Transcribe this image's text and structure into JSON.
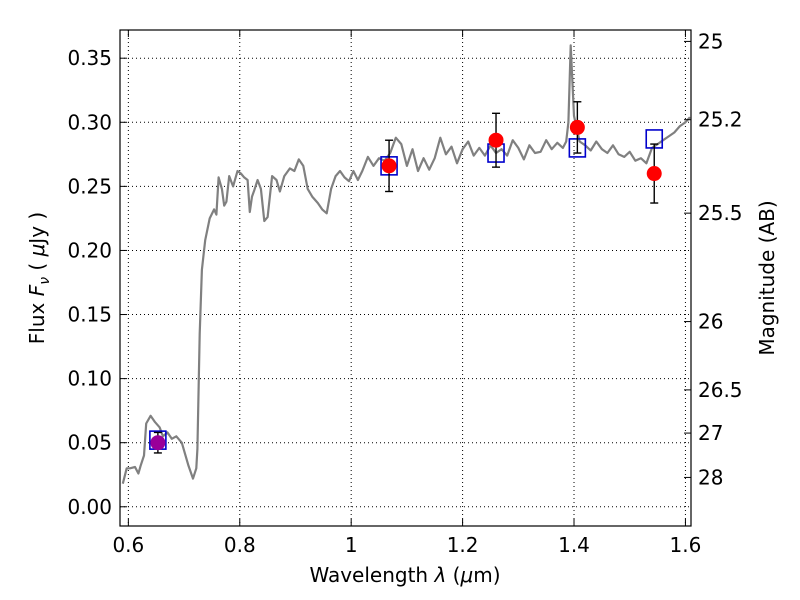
{
  "chart_data": {
    "type": "scatter",
    "xlabel": "Wavelength  λ (μm)",
    "ylabel": "Flux  Fν  ( μJy )",
    "ylabel_right": "Magnitude (AB)",
    "xlim": [
      0.585,
      1.61
    ],
    "ylim": [
      -0.015,
      0.372
    ],
    "grid": true,
    "x_ticks": [
      0.6,
      0.8,
      1.0,
      1.2,
      1.4,
      1.6
    ],
    "x_tick_labels": [
      "0.6",
      "0.8",
      "1",
      "1.2",
      "1.4",
      "1.6"
    ],
    "y_ticks": [
      0.0,
      0.05,
      0.1,
      0.15,
      0.2,
      0.25,
      0.3,
      0.35
    ],
    "y_tick_labels": [
      "0.00",
      "0.05",
      "0.10",
      "0.15",
      "0.20",
      "0.25",
      "0.30",
      "0.35"
    ],
    "right_ticks": [
      {
        "label": "25",
        "flux": 0.3631
      },
      {
        "label": "25.2",
        "flux": 0.302
      },
      {
        "label": "25.5",
        "flux": 0.2291
      },
      {
        "label": "26",
        "flux": 0.1445
      },
      {
        "label": "26.5",
        "flux": 0.0912
      },
      {
        "label": "27",
        "flux": 0.0575
      },
      {
        "label": "28",
        "flux": 0.0229
      }
    ],
    "model_spectrum": {
      "color": "#808080",
      "x": [
        0.59,
        0.597,
        0.603,
        0.612,
        0.618,
        0.622,
        0.628,
        0.632,
        0.64,
        0.648,
        0.656,
        0.662,
        0.67,
        0.678,
        0.686,
        0.696,
        0.708,
        0.716,
        0.722,
        0.724,
        0.728,
        0.732,
        0.738,
        0.746,
        0.754,
        0.758,
        0.762,
        0.768,
        0.772,
        0.776,
        0.781,
        0.788,
        0.796,
        0.802,
        0.808,
        0.814,
        0.818,
        0.822,
        0.826,
        0.832,
        0.838,
        0.844,
        0.85,
        0.858,
        0.866,
        0.872,
        0.88,
        0.89,
        0.898,
        0.906,
        0.914,
        0.922,
        0.93,
        0.94,
        0.948,
        0.956,
        0.964,
        0.972,
        0.98,
        0.988,
        0.996,
        1.004,
        1.012,
        1.02,
        1.03,
        1.04,
        1.05,
        1.06,
        1.07,
        1.08,
        1.09,
        1.1,
        1.11,
        1.12,
        1.13,
        1.14,
        1.15,
        1.16,
        1.17,
        1.18,
        1.19,
        1.2,
        1.21,
        1.22,
        1.23,
        1.24,
        1.25,
        1.26,
        1.27,
        1.28,
        1.29,
        1.3,
        1.31,
        1.32,
        1.33,
        1.34,
        1.35,
        1.36,
        1.37,
        1.38,
        1.386,
        1.39,
        1.394,
        1.4,
        1.41,
        1.42,
        1.43,
        1.44,
        1.45,
        1.46,
        1.47,
        1.48,
        1.49,
        1.5,
        1.51,
        1.52,
        1.53,
        1.54,
        1.55,
        1.56,
        1.57,
        1.58,
        1.59,
        1.6,
        1.608
      ],
      "y": [
        0.018,
        0.03,
        0.03,
        0.031,
        0.026,
        0.032,
        0.04,
        0.065,
        0.071,
        0.066,
        0.062,
        0.055,
        0.058,
        0.053,
        0.055,
        0.05,
        0.032,
        0.022,
        0.03,
        0.045,
        0.135,
        0.185,
        0.208,
        0.225,
        0.232,
        0.228,
        0.257,
        0.248,
        0.235,
        0.238,
        0.258,
        0.25,
        0.262,
        0.26,
        0.257,
        0.255,
        0.23,
        0.242,
        0.247,
        0.255,
        0.248,
        0.223,
        0.226,
        0.258,
        0.255,
        0.246,
        0.258,
        0.264,
        0.262,
        0.271,
        0.266,
        0.248,
        0.242,
        0.237,
        0.232,
        0.229,
        0.248,
        0.258,
        0.262,
        0.257,
        0.254,
        0.262,
        0.255,
        0.262,
        0.273,
        0.266,
        0.272,
        0.27,
        0.276,
        0.288,
        0.283,
        0.266,
        0.279,
        0.262,
        0.272,
        0.263,
        0.272,
        0.288,
        0.275,
        0.281,
        0.268,
        0.279,
        0.285,
        0.274,
        0.28,
        0.274,
        0.282,
        0.276,
        0.279,
        0.274,
        0.286,
        0.28,
        0.271,
        0.282,
        0.276,
        0.277,
        0.286,
        0.279,
        0.284,
        0.28,
        0.285,
        0.3,
        0.36,
        0.305,
        0.285,
        0.282,
        0.278,
        0.285,
        0.279,
        0.276,
        0.282,
        0.275,
        0.273,
        0.277,
        0.27,
        0.272,
        0.268,
        0.28,
        0.283,
        0.286,
        0.289,
        0.292,
        0.297,
        0.3,
        0.304
      ]
    },
    "model_photometry": {
      "marker": "open-square",
      "color": "#0000cc",
      "x": [
        0.653,
        1.068,
        1.26,
        1.406,
        1.544
      ],
      "y": [
        0.052,
        0.266,
        0.276,
        0.28,
        0.287
      ]
    },
    "observed_photometry": {
      "marker": "filled-circle",
      "colors": [
        "#990099",
        "#ff0000",
        "#ff0000",
        "#ff0000",
        "#ff0000"
      ],
      "x": [
        0.653,
        1.068,
        1.26,
        1.406,
        1.544
      ],
      "y": [
        0.05,
        0.266,
        0.286,
        0.296,
        0.26
      ],
      "err": [
        0.008,
        0.02,
        0.021,
        0.02,
        0.023
      ]
    }
  }
}
